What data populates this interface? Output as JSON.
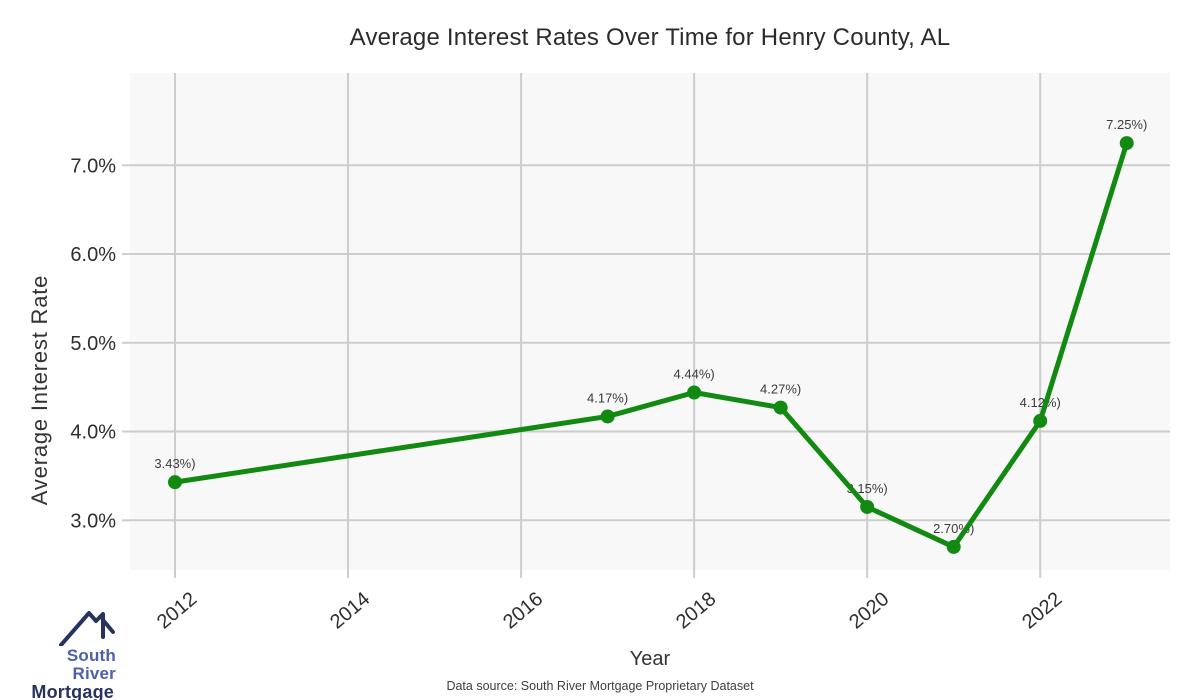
{
  "page": {
    "footer": "Data source: South River Mortgage Proprietary Dataset"
  },
  "logo": {
    "name1": "South River",
    "name2": "Mortgage",
    "color_primary": "#4d61a7",
    "color_dark": "#28325f"
  },
  "chart_data": {
    "type": "line",
    "title": "Average Interest Rates Over Time for Henry County, AL",
    "xlabel": "Year",
    "ylabel": "Average Interest Rate",
    "x": [
      2012,
      2017,
      2018,
      2019,
      2020,
      2021,
      2022,
      2023
    ],
    "values": [
      3.43,
      4.17,
      4.44,
      4.27,
      3.15,
      2.7,
      4.12,
      7.25
    ],
    "point_labels": [
      "3.43%)",
      "4.17%)",
      "4.44%)",
      "4.27%)",
      "3.15%)",
      "2.70%)",
      "4.12%)",
      "7.25%)"
    ],
    "x_ticks": [
      2012,
      2014,
      2016,
      2018,
      2020,
      2022
    ],
    "y_ticks": [
      3.0,
      4.0,
      5.0,
      6.0,
      7.0
    ],
    "y_tick_labels": [
      "3.0%",
      "4.0%",
      "5.0%",
      "6.0%",
      "7.0%"
    ],
    "xlim": [
      2011.48,
      2023.5
    ],
    "ylim": [
      2.44,
      8.04
    ],
    "grid": true,
    "legend": "none",
    "line_color": "#128a12",
    "marker_color": "#128a12",
    "plot_bg": "#f8f8f8",
    "grid_color": "#cdcdcd",
    "tick_label_color": "#2e2e2e",
    "point_label_color": "#3a3a3a"
  }
}
